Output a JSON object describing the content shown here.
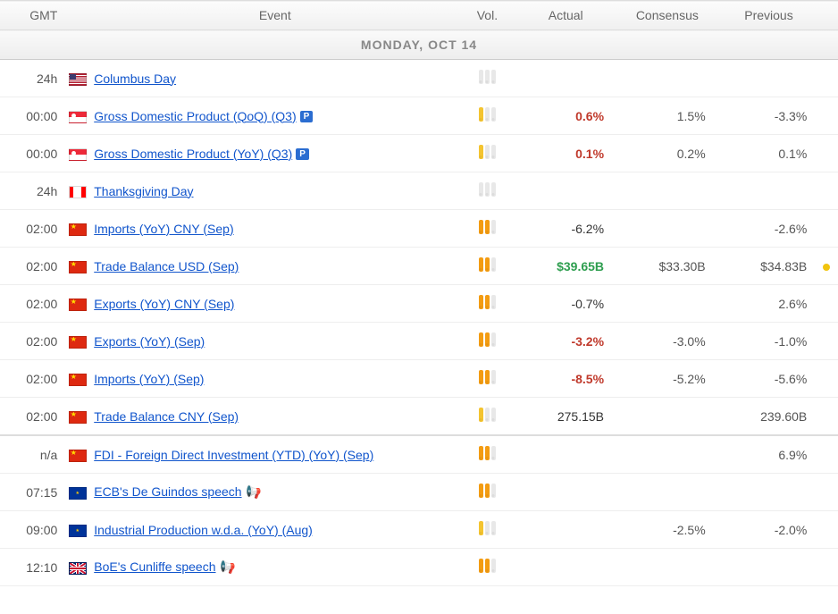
{
  "columns": {
    "gmt": "GMT",
    "event": "Event",
    "vol": "Vol.",
    "actual": "Actual",
    "consensus": "Consensus",
    "previous": "Previous"
  },
  "date_header": "MONDAY, OCT 14",
  "colors": {
    "link": "#1155cc",
    "positive": "#2e9e4f",
    "negative": "#c0392b",
    "header_text": "#666",
    "vol_low": "#f4c430",
    "vol_med": "#f39c12",
    "vol_off": "#e8e8e8",
    "dot_yellow": "#f1c40f"
  },
  "rows": [
    {
      "time": "24h",
      "flag": "us",
      "event": "Columbus Day",
      "p": false,
      "speech": false,
      "vol": 0,
      "actual": "",
      "actual_style": "",
      "consensus": "",
      "previous": "",
      "ind": "",
      "section": false
    },
    {
      "time": "00:00",
      "flag": "sg",
      "event": "Gross Domestic Product (QoQ) (Q3)",
      "p": true,
      "speech": false,
      "vol": 1,
      "actual": "0.6%",
      "actual_style": "neg",
      "consensus": "1.5%",
      "previous": "-3.3%",
      "ind": "",
      "section": false
    },
    {
      "time": "00:00",
      "flag": "sg",
      "event": "Gross Domestic Product (YoY) (Q3)",
      "p": true,
      "speech": false,
      "vol": 1,
      "actual": "0.1%",
      "actual_style": "neg",
      "consensus": "0.2%",
      "previous": "0.1%",
      "ind": "",
      "section": false
    },
    {
      "time": "24h",
      "flag": "ca",
      "event": "Thanksgiving Day",
      "p": false,
      "speech": false,
      "vol": 0,
      "actual": "",
      "actual_style": "",
      "consensus": "",
      "previous": "",
      "ind": "",
      "section": false
    },
    {
      "time": "02:00",
      "flag": "cn",
      "event": "Imports (YoY) CNY (Sep)",
      "p": false,
      "speech": false,
      "vol": 2,
      "actual": "-6.2%",
      "actual_style": "",
      "consensus": "",
      "previous": "-2.6%",
      "ind": "",
      "section": false
    },
    {
      "time": "02:00",
      "flag": "cn",
      "event": "Trade Balance USD (Sep)",
      "p": false,
      "speech": false,
      "vol": 2,
      "actual": "$39.65B",
      "actual_style": "pos",
      "consensus": "$33.30B",
      "previous": "$34.83B",
      "ind": "yellow",
      "section": false
    },
    {
      "time": "02:00",
      "flag": "cn",
      "event": "Exports (YoY) CNY (Sep)",
      "p": false,
      "speech": false,
      "vol": 2,
      "actual": "-0.7%",
      "actual_style": "",
      "consensus": "",
      "previous": "2.6%",
      "ind": "",
      "section": false
    },
    {
      "time": "02:00",
      "flag": "cn",
      "event": "Exports (YoY) (Sep)",
      "p": false,
      "speech": false,
      "vol": 2,
      "actual": "-3.2%",
      "actual_style": "neg",
      "consensus": "-3.0%",
      "previous": "-1.0%",
      "ind": "",
      "section": false
    },
    {
      "time": "02:00",
      "flag": "cn",
      "event": "Imports (YoY) (Sep)",
      "p": false,
      "speech": false,
      "vol": 2,
      "actual": "-8.5%",
      "actual_style": "neg",
      "consensus": "-5.2%",
      "previous": "-5.6%",
      "ind": "",
      "section": false
    },
    {
      "time": "02:00",
      "flag": "cn",
      "event": "Trade Balance CNY (Sep)",
      "p": false,
      "speech": false,
      "vol": 1,
      "actual": "275.15B",
      "actual_style": "",
      "consensus": "",
      "previous": "239.60B",
      "ind": "",
      "section": false
    },
    {
      "time": "n/a",
      "flag": "cn",
      "event": "FDI - Foreign Direct Investment (YTD) (YoY) (Sep)",
      "p": false,
      "speech": false,
      "vol": 2,
      "actual": "",
      "actual_style": "",
      "consensus": "",
      "previous": "6.9%",
      "ind": "",
      "section": true
    },
    {
      "time": "07:15",
      "flag": "eu",
      "event": "ECB's De Guindos speech",
      "p": false,
      "speech": true,
      "vol": 2,
      "actual": "",
      "actual_style": "",
      "consensus": "",
      "previous": "",
      "ind": "",
      "section": false
    },
    {
      "time": "09:00",
      "flag": "eu",
      "event": "Industrial Production w.d.a. (YoY) (Aug)",
      "p": false,
      "speech": false,
      "vol": 1,
      "actual": "",
      "actual_style": "",
      "consensus": "-2.5%",
      "previous": "-2.0%",
      "ind": "",
      "section": false
    },
    {
      "time": "12:10",
      "flag": "gb",
      "event": "BoE's Cunliffe speech",
      "p": false,
      "speech": true,
      "vol": 2,
      "actual": "",
      "actual_style": "",
      "consensus": "",
      "previous": "",
      "ind": "",
      "section": false
    }
  ]
}
